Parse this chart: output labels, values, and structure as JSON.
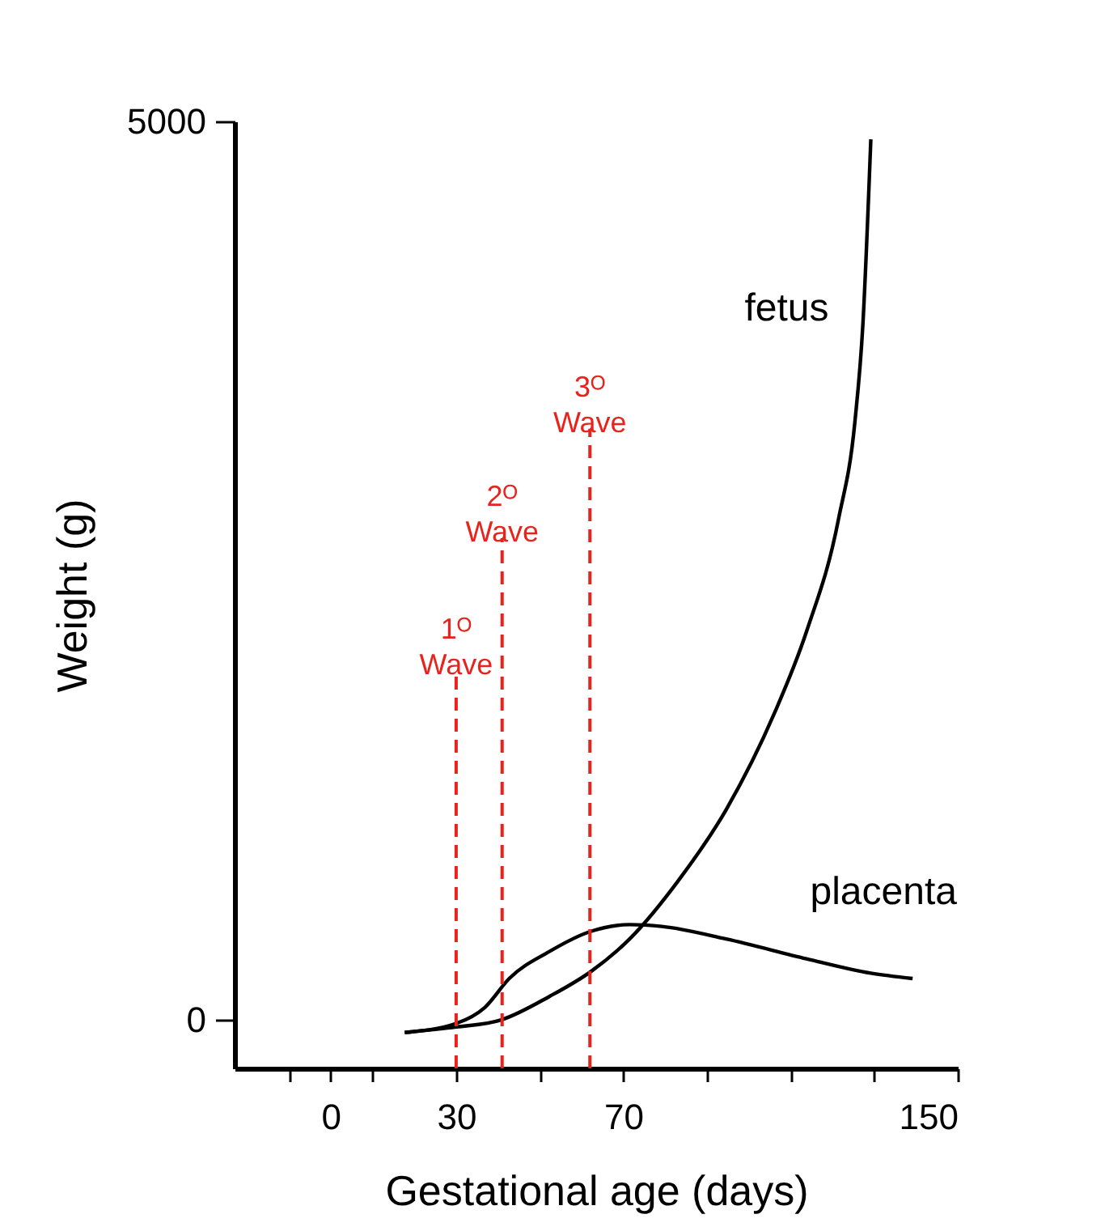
{
  "chart_data": {
    "type": "line",
    "xlabel": "Gestational age (days)",
    "ylabel": "Weight (g)",
    "xlim": [
      -23,
      150
    ],
    "xticks": [
      {
        "value": -10,
        "label": null
      },
      0,
      {
        "value": 10,
        "label": null
      },
      30,
      {
        "value": 50,
        "label": null
      },
      70,
      {
        "value": 90,
        "label": null
      },
      {
        "value": 110,
        "label": null
      },
      {
        "value": 130,
        "label": null
      },
      150
    ],
    "ylim": [
      -270,
      5000
    ],
    "yticks": [
      0,
      5000
    ],
    "grid": false,
    "legend": false,
    "marker": "none",
    "line_style": "solid",
    "series": [
      {
        "name": "fetus",
        "color": "#000000",
        "x": [
          17.7,
          30,
          40.8,
          52.3,
          62.3,
          71.5,
          83,
          94.6,
          106.2,
          113.8,
          121.5,
          125.4,
          127.3,
          129.2
        ],
        "values": [
          -70,
          -40,
          0,
          130,
          270,
          450,
          770,
          1170,
          1710,
          2160,
          2790,
          3330,
          3870,
          4900
        ]
      },
      {
        "name": "placenta",
        "color": "#000000",
        "x": [
          17.7,
          30,
          36.9,
          42.7,
          52.3,
          61.9,
          71.5,
          79.2,
          94.6,
          113.8,
          129.2,
          139.2
        ],
        "values": [
          -70,
          -20,
          70,
          230,
          380,
          490,
          530,
          520,
          450,
          340,
          260,
          230
        ]
      }
    ],
    "ref_lines": [
      {
        "axis": "x",
        "value": 30,
        "color": "#e8231c",
        "line_style": "dashed"
      },
      {
        "axis": "x",
        "value": 41,
        "color": "#e8231c",
        "line_style": "dashed"
      },
      {
        "axis": "x",
        "value": 62,
        "color": "#e8231c",
        "line_style": "dashed"
      }
    ],
    "annotations": [
      {
        "text": "1ᴼ Wave",
        "x": 30,
        "y": 1940
      },
      {
        "text": "2ᴼ Wave",
        "x": 41,
        "y": 2680
      },
      {
        "text": "3ᴼ Wave",
        "x": 62,
        "y": 3290
      }
    ]
  }
}
